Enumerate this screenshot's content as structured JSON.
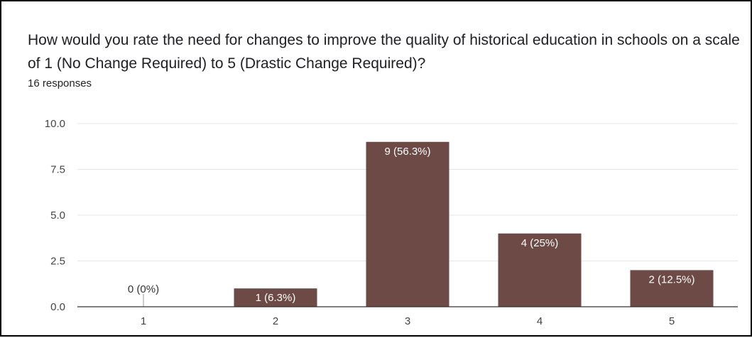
{
  "question": {
    "title": "How would you rate the need for changes to improve the quality of historical education in schools on a scale of 1 (No Change Required) to 5 (Drastic Change Required)?",
    "responses": "16 responses"
  },
  "colors": {
    "bar": "#6d4a46",
    "bar_label_inside": "#ffffff",
    "bar_label_outside": "#333333",
    "gridline": "#e6e6e6",
    "axis": "#333333"
  },
  "chart_data": {
    "type": "bar",
    "title": "",
    "xlabel": "",
    "ylabel": "",
    "categories": [
      "1",
      "2",
      "3",
      "4",
      "5"
    ],
    "values": [
      0,
      1,
      9,
      4,
      2
    ],
    "data_labels": [
      "0 (0%)",
      "1 (6.3%)",
      "9 (56.3%)",
      "4 (25%)",
      "2 (12.5%)"
    ],
    "ylim": [
      0,
      10
    ],
    "yticks": [
      "0.0",
      "2.5",
      "5.0",
      "7.5",
      "10.0"
    ],
    "ytick_values": [
      0,
      2.5,
      5,
      7.5,
      10
    ],
    "grid": true,
    "legend": "none"
  }
}
